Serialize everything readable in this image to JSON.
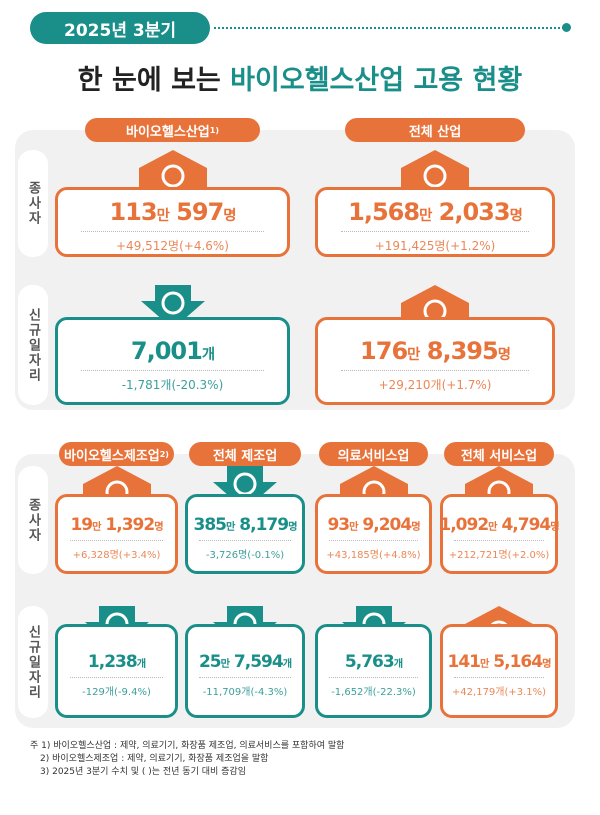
{
  "header": {
    "badge": "2025년 3분기",
    "title_plain": "한 눈에 보는",
    "title_highlight": "바이오헬스산업 고용 현황"
  },
  "sections": [
    {
      "columns": [
        {
          "name": "바이오헬스산업",
          "sup": "1)",
          "color": "#e8733a"
        },
        {
          "name": "전체 산업",
          "color": "#e8733a"
        }
      ],
      "rows": [
        {
          "label": "종사자",
          "cards": [
            {
              "parts": [
                "113",
                "만",
                " 597",
                "명"
              ],
              "change": "+49,512명(+4.6%)",
              "color": "#e8733a",
              "trend": "up"
            },
            {
              "parts": [
                "1,568",
                "만",
                " 2,033",
                "명"
              ],
              "change": "+191,425명(+1.2%)",
              "color": "#e8733a",
              "trend": "up"
            }
          ]
        },
        {
          "label": "신규일자리",
          "cards": [
            {
              "parts": [
                "7,001",
                "개"
              ],
              "change": "-1,781개(-20.3%)",
              "color": "#1a8f8a",
              "trend": "down"
            },
            {
              "parts": [
                "176",
                "만",
                " 8,395",
                "명"
              ],
              "change": "+29,210개(+1.7%)",
              "color": "#e8733a",
              "trend": "up"
            }
          ]
        }
      ]
    },
    {
      "columns": [
        {
          "name": "바이오헬스제조업",
          "sup": "2)",
          "color": "#e8733a"
        },
        {
          "name": "전체 제조업",
          "color": "#e8733a"
        },
        {
          "name": "의료서비스업",
          "color": "#e8733a"
        },
        {
          "name": "전체 서비스업",
          "color": "#e8733a"
        }
      ],
      "rows": [
        {
          "label": "종사자",
          "cards": [
            {
              "parts": [
                "19",
                "만",
                " 1,392",
                "명"
              ],
              "change": "+6,328명(+3.4%)",
              "color": "#e8733a",
              "trend": "up"
            },
            {
              "parts": [
                "385",
                "만",
                " 8,179",
                "명"
              ],
              "change": "-3,726명(-0.1%)",
              "color": "#1a8f8a",
              "trend": "down"
            },
            {
              "parts": [
                "93",
                "만",
                " 9,204",
                "명"
              ],
              "change": "+43,185명(+4.8%)",
              "color": "#e8733a",
              "trend": "up"
            },
            {
              "parts": [
                "1,092",
                "만",
                " 4,794",
                "명"
              ],
              "change": "+212,721명(+2.0%)",
              "color": "#e8733a",
              "trend": "up"
            }
          ]
        },
        {
          "label": "신규일자리",
          "cards": [
            {
              "parts": [
                "1,238",
                "개"
              ],
              "change": "-129개(-9.4%)",
              "color": "#1a8f8a",
              "trend": "down"
            },
            {
              "parts": [
                "25",
                "만",
                " 7,594",
                "개"
              ],
              "change": "-11,709개(-4.3%)",
              "color": "#1a8f8a",
              "trend": "down"
            },
            {
              "parts": [
                "5,763",
                "개"
              ],
              "change": "-1,652개(-22.3%)",
              "color": "#1a8f8a",
              "trend": "down"
            },
            {
              "parts": [
                "141",
                "만",
                " 5,164",
                "명"
              ],
              "change": "+42,179개(+3.1%)",
              "color": "#e8733a",
              "trend": "up"
            }
          ]
        }
      ]
    }
  ],
  "notes": [
    "주 1) 바이오헬스산업 : 제약, 의료기기, 화장품 제조업, 의료서비스를 포함하여 말함",
    "2) 바이오헬스제조업 : 제약, 의료기기, 화장품 제조업을 말함",
    "3) 2025년 3분기 수치 및 ( )는 전년 동기 대비 증감임"
  ]
}
